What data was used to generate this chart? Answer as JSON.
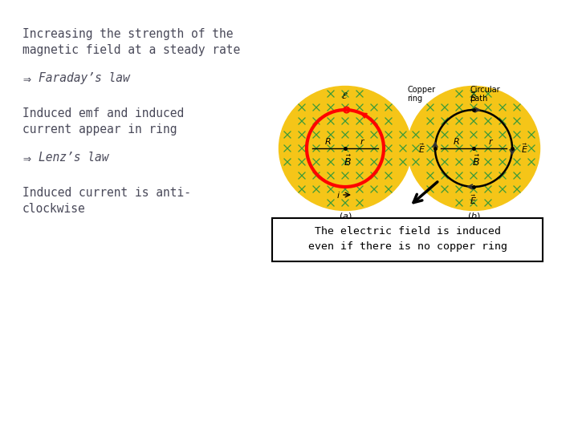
{
  "bg_color": "#ffffff",
  "text_color": "#4a4a5a",
  "title_lines": [
    "Increasing the strength of the",
    "magnetic field at a steady rate"
  ],
  "bullet1": "Faraday’s law",
  "text2_lines": [
    "Induced emf and induced",
    "current appear in ring"
  ],
  "bullet2": "Lenz’s law",
  "text3_lines": [
    "Induced current is anti-",
    "clockwise"
  ],
  "box_text": "The electric field is induced\neven if there is no copper ring",
  "font_family": "monospace",
  "gold_color": "#f5c518",
  "green_x_color": "#3a9a3a",
  "text_color2": "#4a4a5a"
}
